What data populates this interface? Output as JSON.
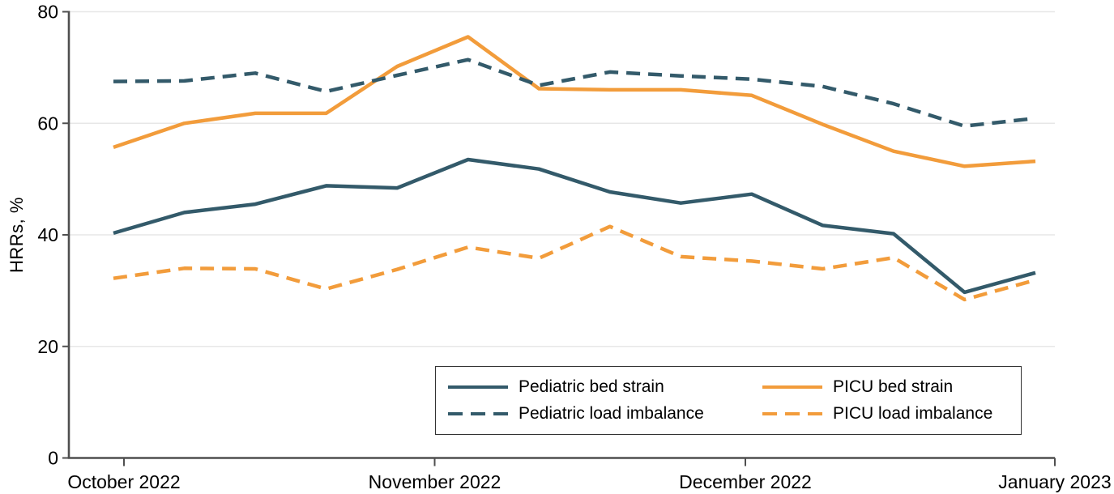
{
  "chart_data": {
    "type": "line",
    "title": "",
    "xlabel": "",
    "ylabel": "HRRs, %",
    "ylim": [
      0,
      80
    ],
    "y_ticks": [
      0,
      20,
      40,
      60,
      80
    ],
    "x_tick_labels": [
      "October 2022",
      "November 2022",
      "December 2022",
      "January 2023"
    ],
    "x_unit": "week",
    "n_points": 14,
    "grid": "horizontal",
    "legend_position": "bottom-center boxed, 2 columns",
    "series": [
      {
        "name": "Pediatric bed strain",
        "style": "solid",
        "color": "#335A6A",
        "values": [
          40.3,
          44.0,
          45.5,
          48.8,
          48.4,
          53.5,
          51.8,
          47.7,
          45.7,
          47.3,
          41.7,
          40.2,
          29.7,
          33.2
        ]
      },
      {
        "name": "PICU bed strain",
        "style": "solid",
        "color": "#F29C3B",
        "values": [
          55.7,
          60.0,
          61.8,
          61.8,
          70.2,
          75.5,
          66.2,
          66.0,
          66.0,
          65.0,
          59.8,
          55.0,
          52.3,
          53.2
        ]
      },
      {
        "name": "Pediatric load imbalance",
        "style": "dashed",
        "color": "#335A6A",
        "values": [
          67.5,
          67.6,
          69.0,
          65.7,
          68.6,
          71.4,
          66.8,
          69.2,
          68.5,
          67.9,
          66.6,
          63.5,
          59.5,
          60.9
        ]
      },
      {
        "name": "PICU load imbalance",
        "style": "dashed",
        "color": "#F29C3B",
        "values": [
          32.2,
          34.0,
          33.9,
          30.3,
          33.8,
          37.8,
          35.8,
          41.5,
          36.1,
          35.3,
          33.9,
          35.9,
          28.4,
          31.9
        ]
      }
    ],
    "colors": {
      "teal": "#335A6A",
      "orange": "#F29C3B",
      "gridline": "#E7E7E7",
      "axis": "#4F4F4F",
      "text": "#000000",
      "background": "#FFFFFF"
    }
  }
}
